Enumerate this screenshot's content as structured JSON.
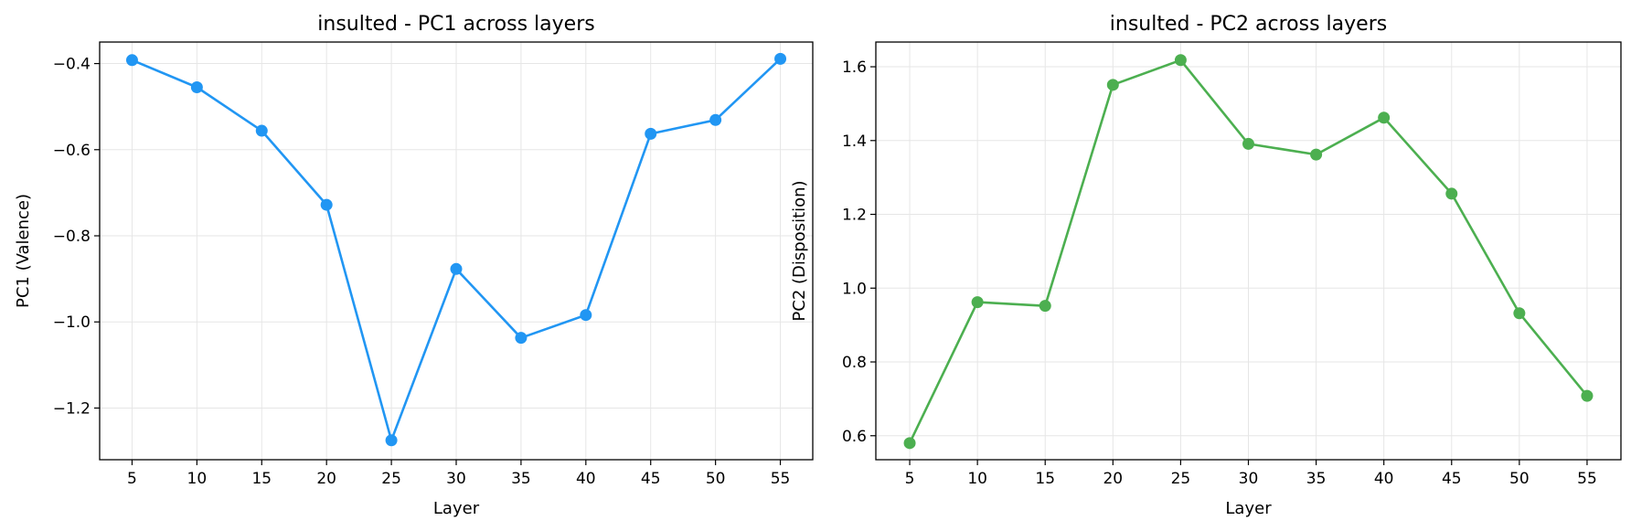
{
  "chart_data": [
    {
      "type": "line",
      "title": "insulted - PC1 across layers",
      "xlabel": "Layer",
      "ylabel": "PC1 (Valence)",
      "x": [
        5,
        10,
        15,
        20,
        25,
        30,
        35,
        40,
        45,
        50,
        55
      ],
      "series": [
        {
          "values": [
            -0.392,
            -0.455,
            -0.556,
            -0.728,
            -1.275,
            -0.877,
            -1.037,
            -0.984,
            -0.563,
            -0.531,
            -0.389
          ],
          "color": "#2196F3"
        }
      ],
      "xlim": [
        2.5,
        57.5
      ],
      "ylim": [
        -1.32,
        -0.35
      ],
      "xticks": [
        5,
        10,
        15,
        20,
        25,
        30,
        35,
        40,
        45,
        50,
        55
      ],
      "xtick_labels": [
        "5",
        "10",
        "15",
        "20",
        "25",
        "30",
        "35",
        "40",
        "45",
        "50",
        "55"
      ],
      "yticks": [
        -1.2,
        -1.0,
        -0.8,
        -0.6,
        -0.4
      ],
      "ytick_labels": [
        "−1.2",
        "−1.0",
        "−0.8",
        "−0.6",
        "−0.4"
      ],
      "grid": true,
      "markers": true
    },
    {
      "type": "line",
      "title": "insulted - PC2 across layers",
      "xlabel": "Layer",
      "ylabel": "PC2 (Disposition)",
      "x": [
        5,
        10,
        15,
        20,
        25,
        30,
        35,
        40,
        45,
        50,
        55
      ],
      "series": [
        {
          "values": [
            0.58,
            0.962,
            0.952,
            1.551,
            1.618,
            1.391,
            1.362,
            1.462,
            1.256,
            0.932,
            0.708
          ],
          "color": "#4CAF50"
        }
      ],
      "xlim": [
        2.5,
        57.5
      ],
      "ylim": [
        0.535,
        1.667
      ],
      "xticks": [
        5,
        10,
        15,
        20,
        25,
        30,
        35,
        40,
        45,
        50,
        55
      ],
      "xtick_labels": [
        "5",
        "10",
        "15",
        "20",
        "25",
        "30",
        "35",
        "40",
        "45",
        "50",
        "55"
      ],
      "yticks": [
        0.6,
        0.8,
        1.0,
        1.2,
        1.4,
        1.6
      ],
      "ytick_labels": [
        "0.6",
        "0.8",
        "1.0",
        "1.2",
        "1.4",
        "1.6"
      ],
      "grid": true,
      "markers": true
    }
  ]
}
